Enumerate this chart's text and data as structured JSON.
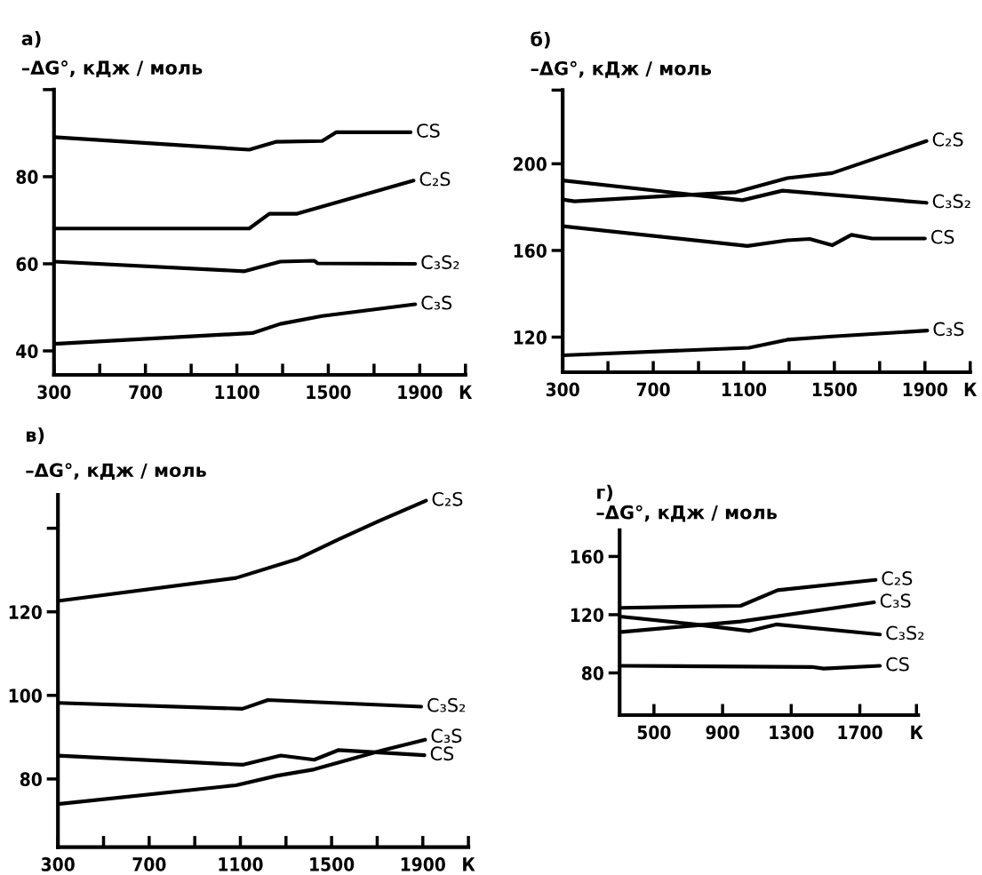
{
  "chart_data": [
    {
      "type": "line",
      "title": "а)",
      "ylabel": "–ΔG°, кДж / моль",
      "xlim": [
        300,
        2100
      ],
      "ylim": [
        34.5,
        100
      ],
      "xticks": [
        300,
        {
          "value": 500,
          "label": null
        },
        700,
        {
          "value": 900,
          "label": null
        },
        1100,
        {
          "value": 1300,
          "label": null
        },
        1500,
        {
          "value": 1700,
          "label": null
        },
        1900,
        {
          "value": 2100,
          "label": "К"
        }
      ],
      "yticks": [
        40,
        60,
        80,
        {
          "value": 100,
          "label": null
        }
      ],
      "grid": false,
      "legend": false,
      "series": [
        {
          "name": "CS",
          "color": "#000000",
          "x": [
            300,
            1154,
            1270,
            1473,
            1534,
            1860
          ],
          "values": [
            89.1,
            86.2,
            88.0,
            88.2,
            90.2,
            90.2
          ]
        },
        {
          "name": "C₂S",
          "color": "#000000",
          "x": [
            300,
            1154,
            1242,
            1364,
            1873
          ],
          "values": [
            68.1,
            68.1,
            71.5,
            71.5,
            79.1
          ]
        },
        {
          "name": "C₃S₂",
          "color": "#000000",
          "x": [
            300,
            1134,
            1290,
            1439,
            1453,
            1880
          ],
          "values": [
            60.5,
            58.3,
            60.5,
            60.7,
            60.1,
            60.0
          ]
        },
        {
          "name": "C₃S",
          "color": "#000000",
          "x": [
            300,
            1168,
            1290,
            1473,
            1880
          ],
          "values": [
            41.6,
            44.1,
            46.2,
            48.0,
            50.7
          ]
        }
      ]
    },
    {
      "type": "line",
      "title": "б)",
      "ylabel": "–ΔG°, кДж / моль",
      "xlim": [
        300,
        2100
      ],
      "ylim": [
        103.8,
        234
      ],
      "xticks": [
        300,
        {
          "value": 500,
          "label": null
        },
        700,
        {
          "value": 900,
          "label": null
        },
        1100,
        {
          "value": 1300,
          "label": null
        },
        1500,
        {
          "value": 1700,
          "label": null
        },
        1900,
        {
          "value": 2100,
          "label": "К"
        }
      ],
      "yticks": [
        120,
        160,
        200,
        {
          "value": 234,
          "label": null
        }
      ],
      "grid": false,
      "legend": false,
      "series": [
        {
          "name": "C₂S",
          "color": "#000000",
          "x": [
            300,
            352,
            1066,
            1292,
            1490,
            1907
          ],
          "values": [
            183.5,
            182.7,
            186.9,
            193.4,
            195.7,
            210.5
          ]
        },
        {
          "name": "C₃S₂",
          "color": "#000000",
          "x": [
            300,
            1094,
            1271,
            1907
          ],
          "values": [
            192.3,
            183.2,
            187.6,
            182.0
          ]
        },
        {
          "name": "CS",
          "color": "#000000",
          "x": [
            300,
            1116,
            1292,
            1391,
            1490,
            1575,
            1667,
            1900
          ],
          "values": [
            171.2,
            162.1,
            164.7,
            165.3,
            162.4,
            167.2,
            165.5,
            165.5
          ]
        },
        {
          "name": "C₃S",
          "color": "#000000",
          "x": [
            300,
            1123,
            1292,
            1490,
            1910
          ],
          "values": [
            111.6,
            115.1,
            118.8,
            120.3,
            123.0
          ]
        }
      ]
    },
    {
      "type": "line",
      "title": "в)",
      "ylabel": "–ΔG°, кДж / моль",
      "xlim": [
        300,
        2100
      ],
      "ylim": [
        63.7,
        148
      ],
      "xticks": [
        300,
        {
          "value": 500,
          "label": null
        },
        700,
        {
          "value": 900,
          "label": null
        },
        1100,
        {
          "value": 1300,
          "label": null
        },
        1500,
        {
          "value": 1700,
          "label": null
        },
        1900,
        {
          "value": 2100,
          "label": "К"
        }
      ],
      "yticks": [
        80,
        100,
        120,
        {
          "value": 140,
          "label": null
        }
      ],
      "grid": false,
      "legend": false,
      "series": [
        {
          "name": "C₂S",
          "color": "#000000",
          "x": [
            300,
            1081,
            1354,
            1529,
            1711,
            1914
          ],
          "values": [
            122.6,
            128.1,
            132.7,
            137.3,
            141.8,
            146.6
          ]
        },
        {
          "name": "C₃S₂",
          "color": "#000000",
          "x": [
            300,
            1109,
            1221,
            1893
          ],
          "values": [
            98.2,
            96.8,
            98.9,
            97.3
          ]
        },
        {
          "name": "C₃S",
          "color": "#000000",
          "x": [
            300,
            1081,
            1263,
            1424,
            1725,
            1910
          ],
          "values": [
            74.0,
            78.5,
            80.8,
            82.3,
            86.9,
            89.4
          ]
        },
        {
          "name": "CS",
          "color": "#000000",
          "x": [
            300,
            1109,
            1277,
            1424,
            1529,
            1907
          ],
          "values": [
            85.6,
            83.4,
            85.6,
            84.6,
            86.9,
            85.7
          ]
        }
      ]
    },
    {
      "type": "line",
      "title": "г)",
      "ylabel": "–ΔG°, кДж / моль",
      "xlim": [
        300,
        2040
      ],
      "ylim": [
        51,
        178
      ],
      "xticks": [
        500,
        900,
        1300,
        1700,
        {
          "value": 2030,
          "label": "К"
        }
      ],
      "yticks": [
        80,
        120,
        160
      ],
      "grid": false,
      "legend": false,
      "series": [
        {
          "name": "C₂S",
          "color": "#000000",
          "x": [
            313,
            1005,
            1221,
            1792
          ],
          "values": [
            124.7,
            126.1,
            136.8,
            143.9
          ]
        },
        {
          "name": "C₃S",
          "color": "#000000",
          "x": [
            313,
            1005,
            1783
          ],
          "values": [
            108.2,
            115.3,
            128.5
          ]
        },
        {
          "name": "C₃S₂",
          "color": "#000000",
          "x": [
            313,
            728,
            1057,
            1212,
            1817
          ],
          "values": [
            118.6,
            113.5,
            108.8,
            113.3,
            106.4
          ]
        },
        {
          "name": "CS",
          "color": "#000000",
          "x": [
            313,
            1420,
            1489,
            1817
          ],
          "values": [
            84.9,
            84.1,
            83.0,
            84.9
          ]
        }
      ]
    }
  ]
}
